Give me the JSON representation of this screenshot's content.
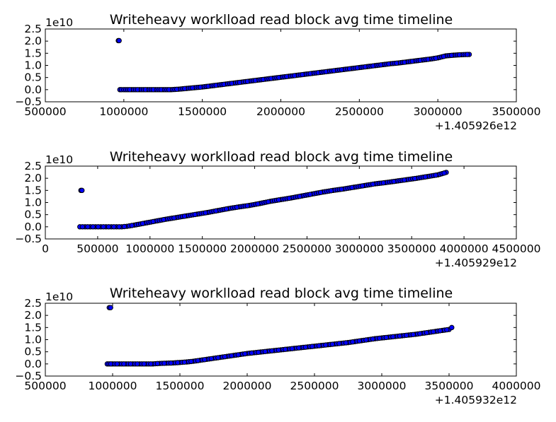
{
  "chart_data": [
    {
      "type": "scatter",
      "title": "Writeheavy worklload read block avg time timeline",
      "xlim": [
        500000,
        3500000
      ],
      "ylim": [
        -0.5,
        2.5
      ],
      "x_ticks": [
        "500000",
        "1000000",
        "1500000",
        "2000000",
        "2500000",
        "3000000",
        "3500000"
      ],
      "y_ticks": [
        "2.5",
        "2.0",
        "1.5",
        "1.0",
        "0.5",
        "0.0",
        "−0.5"
      ],
      "y_scale_label": "1e10",
      "x_offset_label": "+1.405926e12",
      "series": [
        {
          "x": [
            965000,
            970000,
            975000,
            985000,
            1000000,
            1050000,
            1100000,
            1150000,
            1200000,
            1250000,
            1300000,
            1350000,
            1400000,
            1450000,
            1500000,
            1550000,
            1600000,
            1650000,
            1700000,
            1750000,
            1800000,
            1850000,
            1900000,
            1950000,
            2000000,
            2050000,
            2100000,
            2150000,
            2200000,
            2250000,
            2300000,
            2350000,
            2400000,
            2450000,
            2500000,
            2550000,
            2600000,
            2650000,
            2700000,
            2750000,
            2800000,
            2850000,
            2900000,
            2950000,
            3000000,
            3050000,
            3100000,
            3150000,
            3200000
          ],
          "y": [
            2.02,
            2.02,
            0.0,
            0.0,
            0.0,
            0.0,
            0.0,
            0.0,
            0.0,
            0.0,
            0.0,
            0.02,
            0.05,
            0.08,
            0.11,
            0.15,
            0.19,
            0.23,
            0.27,
            0.31,
            0.35,
            0.39,
            0.43,
            0.47,
            0.51,
            0.55,
            0.59,
            0.63,
            0.67,
            0.71,
            0.75,
            0.79,
            0.83,
            0.87,
            0.91,
            0.95,
            0.99,
            1.03,
            1.07,
            1.1,
            1.14,
            1.18,
            1.22,
            1.26,
            1.31,
            1.39,
            1.42,
            1.44,
            1.45
          ]
        }
      ]
    },
    {
      "type": "scatter",
      "title": "Writeheavy worklload read block avg time timeline",
      "xlim": [
        0,
        4500000
      ],
      "ylim": [
        -0.5,
        2.5
      ],
      "x_ticks": [
        "0",
        "500000",
        "1000000",
        "1500000",
        "2000000",
        "2500000",
        "3000000",
        "3500000",
        "4000000",
        "4500000"
      ],
      "y_ticks": [
        "2.5",
        "2.0",
        "1.5",
        "1.0",
        "0.5",
        "0.0",
        "−0.5"
      ],
      "y_scale_label": "1e10",
      "x_offset_label": "+1.405929e12",
      "series": [
        {
          "x": [
            340000,
            350000,
            330000,
            380000,
            430000,
            480000,
            530000,
            580000,
            630000,
            680000,
            730000,
            780000,
            850000,
            950000,
            1050000,
            1150000,
            1250000,
            1350000,
            1450000,
            1550000,
            1650000,
            1750000,
            1850000,
            1950000,
            2050000,
            2150000,
            2250000,
            2350000,
            2450000,
            2550000,
            2650000,
            2750000,
            2850000,
            2950000,
            3050000,
            3150000,
            3250000,
            3350000,
            3450000,
            3550000,
            3650000,
            3750000,
            3830000
          ],
          "y": [
            1.5,
            1.5,
            0.0,
            0.0,
            0.0,
            0.0,
            0.0,
            0.0,
            0.0,
            0.0,
            0.0,
            0.02,
            0.07,
            0.15,
            0.23,
            0.31,
            0.38,
            0.45,
            0.52,
            0.59,
            0.67,
            0.75,
            0.82,
            0.88,
            0.96,
            1.05,
            1.12,
            1.19,
            1.27,
            1.35,
            1.43,
            1.5,
            1.56,
            1.63,
            1.7,
            1.77,
            1.82,
            1.88,
            1.94,
            2.0,
            2.07,
            2.14,
            2.24
          ]
        }
      ]
    },
    {
      "type": "scatter",
      "title": "Writeheavy worklload read block avg time timeline",
      "xlim": [
        500000,
        4000000
      ],
      "ylim": [
        -0.5,
        2.5
      ],
      "x_ticks": [
        "500000",
        "1000000",
        "1500000",
        "2000000",
        "2500000",
        "3000000",
        "3500000",
        "4000000"
      ],
      "y_ticks": [
        "2.5",
        "2.0",
        "1.5",
        "1.0",
        "0.5",
        "0.0",
        "−0.5"
      ],
      "y_scale_label": "1e10",
      "x_offset_label": "+1.405932e12",
      "series": [
        {
          "x": [
            975000,
            985000,
            960000,
            1000000,
            1050000,
            1100000,
            1150000,
            1200000,
            1250000,
            1300000,
            1350000,
            1400000,
            1450000,
            1500000,
            1550000,
            1600000,
            1650000,
            1700000,
            1750000,
            1800000,
            1850000,
            1900000,
            1950000,
            2000000,
            2050000,
            2100000,
            2150000,
            2200000,
            2250000,
            2300000,
            2350000,
            2400000,
            2450000,
            2500000,
            2550000,
            2600000,
            2650000,
            2700000,
            2750000,
            2800000,
            2850000,
            2900000,
            2950000,
            3000000,
            3050000,
            3100000,
            3150000,
            3200000,
            3250000,
            3300000,
            3350000,
            3400000,
            3450000,
            3500000,
            3520000
          ],
          "y": [
            2.32,
            2.32,
            0.0,
            0.0,
            0.0,
            0.0,
            0.0,
            0.0,
            0.0,
            0.0,
            0.02,
            0.03,
            0.04,
            0.06,
            0.08,
            0.11,
            0.15,
            0.19,
            0.23,
            0.27,
            0.31,
            0.35,
            0.39,
            0.43,
            0.46,
            0.49,
            0.52,
            0.55,
            0.58,
            0.61,
            0.64,
            0.67,
            0.7,
            0.73,
            0.76,
            0.79,
            0.82,
            0.85,
            0.88,
            0.92,
            0.96,
            1.0,
            1.04,
            1.07,
            1.1,
            1.13,
            1.16,
            1.19,
            1.22,
            1.26,
            1.3,
            1.34,
            1.38,
            1.42,
            1.5
          ]
        }
      ]
    }
  ]
}
